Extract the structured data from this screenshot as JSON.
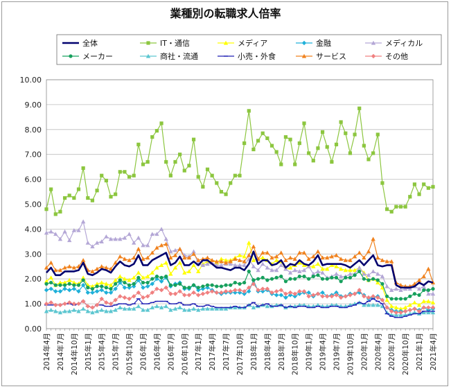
{
  "chart_data": {
    "type": "line",
    "title": "業種別の転職求人倍率",
    "xlabel": "",
    "ylabel": "",
    "ylim": [
      0,
      10
    ],
    "yticks": [
      "0.00",
      "1.00",
      "2.00",
      "3.00",
      "4.00",
      "5.00",
      "6.00",
      "7.00",
      "8.00",
      "9.00",
      "10.00"
    ],
    "grid": true,
    "legend_position": "top",
    "x": [
      "2014年4月",
      "2014年5月",
      "2014年6月",
      "2014年7月",
      "2014年8月",
      "2014年9月",
      "2014年10月",
      "2014年11月",
      "2014年12月",
      "2015年1月",
      "2015年2月",
      "2015年3月",
      "2015年4月",
      "2015年5月",
      "2015年6月",
      "2015年7月",
      "2015年8月",
      "2015年9月",
      "2015年10月",
      "2015年11月",
      "2015年12月",
      "2016年1月",
      "2016年2月",
      "2016年3月",
      "2016年4月",
      "2016年5月",
      "2016年6月",
      "2016年7月",
      "2016年8月",
      "2016年9月",
      "2016年10月",
      "2016年11月",
      "2016年12月",
      "2017年1月",
      "2017年2月",
      "2017年3月",
      "2017年4月",
      "2017年5月",
      "2017年6月",
      "2017年7月",
      "2017年8月",
      "2017年9月",
      "2017年10月",
      "2017年11月",
      "2017年12月",
      "2018年1月",
      "2018年2月",
      "2018年3月",
      "2018年4月",
      "2018年5月",
      "2018年6月",
      "2018年7月",
      "2018年8月",
      "2018年9月",
      "2018年10月",
      "2018年11月",
      "2018年12月",
      "2019年1月",
      "2019年2月",
      "2019年3月",
      "2019年4月",
      "2019年5月",
      "2019年6月",
      "2019年7月",
      "2019年8月",
      "2019年9月",
      "2019年10月",
      "2019年11月",
      "2019年12月",
      "2020年1月",
      "2020年2月",
      "2020年3月",
      "2020年4月",
      "2020年5月",
      "2020年6月",
      "2020年7月",
      "2020年8月",
      "2020年9月",
      "2020年10月",
      "2020年11月",
      "2020年12月",
      "2021年1月",
      "2021年2月",
      "2021年3月",
      "2021年4月"
    ],
    "xtick_labels": [
      "2014年4月",
      "2014年7月",
      "2014年10月",
      "2015年1月",
      "2015年4月",
      "2015年7月",
      "2015年10月",
      "2016年1月",
      "2016年4月",
      "2016年7月",
      "2016年10月",
      "2017年1月",
      "2017年4月",
      "2017年7月",
      "2017年10月",
      "2018年1月",
      "2018年4月",
      "2018年7月",
      "2018年10月",
      "2019年1月",
      "2019年4月",
      "2019年7月",
      "2019年10月",
      "2020年1月",
      "2020年4月",
      "2020年7月",
      "2020年10月",
      "2021年1月",
      "2021年4月"
    ],
    "series": [
      {
        "name": "全体",
        "color": "#00006e",
        "marker": "none",
        "width": 2.6,
        "values": [
          2.25,
          2.45,
          2.15,
          2.15,
          2.3,
          2.3,
          2.3,
          2.35,
          2.65,
          2.2,
          2.15,
          2.25,
          2.4,
          2.35,
          2.25,
          2.5,
          2.7,
          2.55,
          2.5,
          2.6,
          2.95,
          2.55,
          2.55,
          2.75,
          2.85,
          2.95,
          3.05,
          2.55,
          2.65,
          2.9,
          2.55,
          2.55,
          2.7,
          2.55,
          2.75,
          2.75,
          2.6,
          2.45,
          2.45,
          2.4,
          2.35,
          2.45,
          2.45,
          2.35,
          2.6,
          3.1,
          2.6,
          2.75,
          2.75,
          2.55,
          2.6,
          2.75,
          2.45,
          2.6,
          2.55,
          2.75,
          2.6,
          2.55,
          2.7,
          2.95,
          2.55,
          2.6,
          2.6,
          2.6,
          2.6,
          2.55,
          2.45,
          2.6,
          2.75,
          2.55,
          2.75,
          2.95,
          2.55,
          2.5,
          2.55,
          2.55,
          1.75,
          1.65,
          1.65,
          1.65,
          1.7,
          1.85,
          1.75,
          1.9,
          1.85
        ]
      },
      {
        "name": "IT・通信",
        "color": "#8cc63f",
        "marker": "square",
        "width": 1.2,
        "values": [
          4.8,
          5.6,
          4.6,
          4.7,
          5.25,
          5.35,
          5.25,
          5.6,
          6.45,
          5.25,
          5.15,
          5.55,
          6.15,
          5.95,
          5.3,
          5.4,
          6.3,
          6.3,
          6.1,
          6.15,
          7.4,
          6.6,
          6.7,
          7.7,
          7.95,
          8.25,
          6.7,
          6.15,
          6.7,
          7.0,
          6.35,
          6.55,
          7.6,
          6.1,
          5.7,
          6.4,
          6.15,
          5.85,
          5.5,
          5.4,
          5.85,
          6.15,
          6.15,
          7.45,
          8.75,
          7.2,
          7.55,
          7.85,
          7.65,
          7.35,
          7.1,
          6.6,
          7.7,
          7.6,
          6.6,
          7.45,
          8.25,
          7.05,
          6.75,
          7.25,
          7.9,
          7.3,
          6.7,
          7.4,
          8.3,
          7.85,
          7.05,
          7.8,
          8.85,
          7.35,
          6.8,
          7.05,
          7.8,
          5.85,
          4.8,
          4.7,
          4.9,
          4.9,
          4.9,
          5.3,
          5.8,
          5.4,
          5.8,
          5.65,
          5.7
        ]
      },
      {
        "name": "メディア",
        "color": "#ffff00",
        "marker": "triangle",
        "width": 1.2,
        "values": [
          1.9,
          2.05,
          1.75,
          1.85,
          1.85,
          1.95,
          1.85,
          1.8,
          2.05,
          1.75,
          1.7,
          1.8,
          1.85,
          1.8,
          1.75,
          1.95,
          2.1,
          2.0,
          1.95,
          2.05,
          2.25,
          2.05,
          2.1,
          2.25,
          2.45,
          2.55,
          2.65,
          2.2,
          2.45,
          2.65,
          2.25,
          2.3,
          2.55,
          2.3,
          2.6,
          2.7,
          2.75,
          2.65,
          2.8,
          2.75,
          2.75,
          2.85,
          2.95,
          2.9,
          3.45,
          2.75,
          2.8,
          2.85,
          2.75,
          2.6,
          2.75,
          2.7,
          2.4,
          2.45,
          2.55,
          2.65,
          2.55,
          2.5,
          2.5,
          2.6,
          2.4,
          2.4,
          2.55,
          2.5,
          2.4,
          2.35,
          2.35,
          2.35,
          2.45,
          2.25,
          1.95,
          2.0,
          1.85,
          1.65,
          1.15,
          0.9,
          0.85,
          0.8,
          0.85,
          0.95,
          1.05,
          0.95,
          1.1,
          1.1,
          1.05
        ]
      },
      {
        "name": "金融",
        "color": "#1fb0d9",
        "marker": "diamond",
        "width": 1.2,
        "values": [
          1.55,
          1.6,
          1.5,
          1.5,
          1.6,
          1.55,
          1.6,
          1.5,
          1.75,
          1.45,
          1.45,
          1.5,
          1.55,
          1.45,
          1.45,
          1.6,
          1.85,
          1.65,
          1.65,
          1.7,
          1.95,
          1.65,
          1.7,
          1.8,
          2.0,
          1.9,
          2.05,
          1.7,
          1.8,
          1.85,
          1.6,
          1.6,
          1.75,
          1.55,
          1.6,
          1.65,
          1.55,
          1.45,
          1.4,
          1.45,
          1.45,
          1.45,
          1.45,
          1.4,
          1.5,
          1.95,
          1.5,
          1.5,
          1.55,
          1.4,
          1.35,
          1.35,
          1.25,
          1.35,
          1.3,
          1.4,
          1.45,
          1.45,
          1.3,
          1.4,
          1.45,
          1.3,
          1.35,
          1.45,
          1.3,
          1.3,
          1.4,
          1.4,
          1.45,
          1.35,
          1.2,
          1.25,
          1.3,
          1.15,
          0.85,
          0.75,
          0.7,
          0.7,
          0.7,
          0.75,
          0.8,
          0.75,
          0.85,
          0.75,
          0.8
        ]
      },
      {
        "name": "メディカル",
        "color": "#b4a7d6",
        "marker": "triangle",
        "width": 1.2,
        "values": [
          3.85,
          3.9,
          3.8,
          3.6,
          3.9,
          3.55,
          3.95,
          3.95,
          4.3,
          3.45,
          3.3,
          3.45,
          3.5,
          3.7,
          3.6,
          3.6,
          3.6,
          3.65,
          3.8,
          3.45,
          3.65,
          3.35,
          3.35,
          3.8,
          3.8,
          4.0,
          3.6,
          3.1,
          3.15,
          3.2,
          2.95,
          2.9,
          3.1,
          2.6,
          2.55,
          2.6,
          2.65,
          2.55,
          2.55,
          2.6,
          2.6,
          2.55,
          2.55,
          2.55,
          2.8,
          2.5,
          2.35,
          2.6,
          2.45,
          2.35,
          2.35,
          2.55,
          2.4,
          2.25,
          2.35,
          2.3,
          2.35,
          2.5,
          2.2,
          2.3,
          2.25,
          2.05,
          2.1,
          2.2,
          2.1,
          2.1,
          2.2,
          2.2,
          2.45,
          2.2,
          2.15,
          2.3,
          2.2,
          2.1,
          1.7,
          1.55,
          1.6,
          1.55,
          1.6,
          1.6,
          1.7,
          1.6,
          1.7,
          1.4,
          1.4
        ]
      },
      {
        "name": "メーカー",
        "color": "#17a05d",
        "marker": "circle",
        "width": 1.2,
        "values": [
          1.8,
          1.85,
          1.75,
          1.75,
          1.75,
          1.8,
          1.75,
          1.75,
          1.95,
          1.65,
          1.6,
          1.7,
          1.7,
          1.65,
          1.6,
          1.8,
          1.95,
          1.85,
          1.75,
          1.8,
          2.05,
          1.85,
          1.85,
          2.0,
          2.1,
          2.05,
          2.1,
          1.75,
          1.75,
          1.8,
          1.65,
          1.65,
          1.75,
          1.65,
          1.7,
          1.75,
          1.75,
          1.7,
          1.7,
          1.75,
          1.75,
          1.85,
          1.8,
          1.85,
          2.3,
          1.95,
          2.0,
          2.05,
          1.95,
          2.0,
          2.05,
          2.1,
          1.9,
          2.0,
          2.0,
          2.1,
          2.1,
          2.0,
          2.1,
          2.15,
          2.0,
          2.0,
          2.05,
          2.05,
          1.9,
          2.05,
          2.05,
          2.15,
          2.3,
          2.0,
          1.95,
          2.0,
          1.95,
          1.8,
          1.3,
          1.2,
          1.2,
          1.2,
          1.2,
          1.3,
          1.4,
          1.35,
          1.55,
          1.55,
          1.6
        ]
      },
      {
        "name": "商社・流通",
        "color": "#5cc6d0",
        "marker": "triangle",
        "width": 1.2,
        "values": [
          0.7,
          0.75,
          0.7,
          0.65,
          0.7,
          0.7,
          0.75,
          0.7,
          0.8,
          0.7,
          0.65,
          0.7,
          0.75,
          0.7,
          0.7,
          0.75,
          0.85,
          0.8,
          0.8,
          0.8,
          0.9,
          0.75,
          0.75,
          0.85,
          0.9,
          0.85,
          0.9,
          0.75,
          0.8,
          0.85,
          0.75,
          0.75,
          0.8,
          0.75,
          0.8,
          0.8,
          0.8,
          0.8,
          0.8,
          0.8,
          0.85,
          0.85,
          0.85,
          0.85,
          0.95,
          0.85,
          0.9,
          0.95,
          0.9,
          0.9,
          0.95,
          0.95,
          0.85,
          0.9,
          0.9,
          0.95,
          0.95,
          0.9,
          0.9,
          0.95,
          0.9,
          0.9,
          0.95,
          0.95,
          0.9,
          0.9,
          0.95,
          1.0,
          1.05,
          0.95,
          0.95,
          0.95,
          0.95,
          0.9,
          0.65,
          0.55,
          0.55,
          0.55,
          0.55,
          0.6,
          0.65,
          0.6,
          0.65,
          0.65,
          0.65
        ]
      },
      {
        "name": "小売・外食",
        "color": "#1f1fb4",
        "marker": "dash",
        "width": 1.2,
        "values": [
          0.95,
          0.95,
          0.95,
          0.95,
          1.0,
          1.0,
          0.95,
          1.0,
          1.1,
          0.9,
          0.85,
          0.95,
          0.95,
          0.9,
          0.9,
          0.95,
          1.0,
          1.0,
          0.95,
          1.0,
          1.2,
          1.0,
          1.0,
          1.05,
          1.1,
          1.1,
          1.1,
          1.0,
          1.0,
          1.05,
          0.95,
          0.95,
          1.0,
          0.9,
          0.9,
          0.95,
          0.9,
          0.85,
          0.85,
          0.85,
          0.85,
          0.9,
          0.85,
          0.85,
          0.95,
          1.05,
          0.9,
          0.95,
          1.0,
          0.9,
          0.9,
          0.95,
          0.85,
          0.9,
          0.85,
          0.9,
          0.9,
          0.85,
          0.85,
          0.9,
          0.85,
          0.85,
          0.9,
          0.9,
          0.85,
          0.85,
          0.9,
          0.95,
          1.05,
          1.0,
          1.1,
          1.2,
          1.1,
          1.0,
          0.6,
          0.5,
          0.45,
          0.45,
          0.5,
          0.55,
          0.6,
          0.6,
          0.7,
          0.7,
          0.7
        ]
      },
      {
        "name": "サービス",
        "color": "#f0821e",
        "marker": "triangle",
        "width": 1.2,
        "values": [
          2.45,
          2.65,
          2.35,
          2.35,
          2.45,
          2.5,
          2.45,
          2.5,
          2.75,
          2.35,
          2.3,
          2.4,
          2.5,
          2.45,
          2.4,
          2.65,
          2.9,
          2.8,
          2.75,
          2.85,
          3.2,
          2.8,
          2.85,
          3.05,
          3.25,
          3.35,
          3.4,
          2.85,
          2.95,
          3.2,
          2.85,
          2.85,
          3.0,
          2.75,
          2.8,
          2.85,
          2.75,
          2.7,
          2.7,
          2.65,
          2.7,
          2.8,
          2.75,
          2.7,
          2.95,
          3.3,
          2.8,
          3.05,
          3.05,
          2.85,
          2.9,
          3.05,
          2.75,
          2.85,
          2.8,
          3.05,
          3.05,
          2.8,
          2.9,
          3.1,
          2.85,
          2.85,
          2.9,
          2.95,
          2.8,
          2.75,
          2.75,
          2.9,
          3.05,
          2.85,
          3.1,
          3.6,
          2.85,
          2.75,
          2.7,
          2.7,
          1.85,
          1.75,
          1.7,
          1.7,
          1.8,
          1.95,
          2.1,
          2.4,
          1.85
        ]
      },
      {
        "name": "その他",
        "color": "#f08080",
        "marker": "diamond",
        "width": 1.2,
        "values": [
          1.0,
          1.05,
          0.95,
          0.95,
          1.0,
          1.05,
          1.0,
          1.0,
          1.1,
          0.9,
          0.85,
          0.95,
          1.2,
          1.05,
          1.0,
          1.15,
          1.3,
          1.25,
          1.2,
          1.3,
          1.45,
          1.25,
          1.3,
          1.45,
          1.6,
          1.55,
          1.65,
          1.4,
          1.4,
          1.5,
          1.35,
          1.35,
          1.45,
          1.35,
          1.4,
          1.45,
          1.5,
          1.45,
          1.45,
          1.5,
          1.5,
          1.55,
          1.55,
          1.5,
          1.65,
          1.8,
          1.55,
          1.6,
          1.6,
          1.45,
          1.5,
          1.55,
          1.4,
          1.45,
          1.4,
          1.5,
          1.5,
          1.3,
          1.35,
          1.4,
          1.3,
          1.3,
          1.3,
          1.35,
          1.25,
          1.3,
          1.35,
          1.4,
          1.55,
          1.3,
          1.25,
          1.3,
          1.25,
          1.15,
          0.85,
          0.7,
          0.65,
          0.65,
          0.7,
          0.75,
          0.8,
          0.7,
          0.85,
          0.85,
          0.85
        ]
      }
    ]
  }
}
